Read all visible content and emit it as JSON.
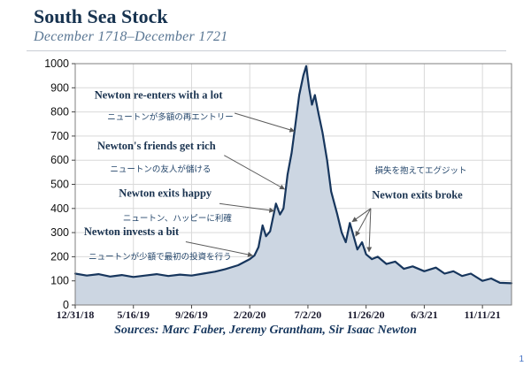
{
  "header": {
    "title": "South Sea Stock",
    "subtitle": "December 1718–December 1721"
  },
  "footer": {
    "sources": "Sources: Marc Faber, Jeremy Grantham, Sir Isaac Newton",
    "page_number": "1"
  },
  "chart_data": {
    "type": "line",
    "title": "South Sea Stock",
    "subtitle": "December 1718–December 1721",
    "x_tick_labels": [
      "12/31/18",
      "5/16/19",
      "9/26/19",
      "2/20/20",
      "7/2/20",
      "11/26/20",
      "6/3/21",
      "11/11/21"
    ],
    "x_ticks": [
      0,
      1,
      2,
      3,
      4,
      5,
      6,
      7
    ],
    "xlim": [
      0,
      7.5
    ],
    "y_ticks": [
      0,
      100,
      200,
      300,
      400,
      500,
      600,
      700,
      800,
      900,
      1000
    ],
    "ylim": [
      0,
      1000
    ],
    "grid": true,
    "area_fill": true,
    "legend": "none",
    "colors": {
      "line": "#17365d",
      "fill": "#ccd6e2",
      "grid": "#d9d9d9",
      "frame": "#7f7f7f",
      "annotation": "#1a3350",
      "title": "#16324f",
      "subtitle": "#5a7794"
    },
    "series": [
      {
        "name": "South Sea Stock price",
        "x": [
          0,
          0.2,
          0.4,
          0.6,
          0.8,
          1.0,
          1.2,
          1.4,
          1.6,
          1.8,
          2.0,
          2.2,
          2.4,
          2.6,
          2.8,
          3.0,
          3.08,
          3.15,
          3.22,
          3.28,
          3.35,
          3.45,
          3.52,
          3.58,
          3.65,
          3.72,
          3.78,
          3.85,
          3.92,
          3.97,
          4.02,
          4.07,
          4.12,
          4.18,
          4.25,
          4.33,
          4.4,
          4.5,
          4.58,
          4.65,
          4.72,
          4.78,
          4.85,
          4.93,
          5.0,
          5.1,
          5.2,
          5.35,
          5.5,
          5.65,
          5.8,
          6.0,
          6.2,
          6.35,
          6.5,
          6.65,
          6.8,
          7.0,
          7.15,
          7.3,
          7.5
        ],
        "y": [
          130,
          122,
          128,
          118,
          124,
          116,
          122,
          128,
          120,
          126,
          122,
          130,
          138,
          150,
          165,
          190,
          205,
          240,
          330,
          285,
          305,
          420,
          375,
          400,
          540,
          630,
          740,
          870,
          950,
          990,
          900,
          830,
          870,
          795,
          715,
          600,
          470,
          380,
          300,
          260,
          340,
          290,
          230,
          260,
          210,
          190,
          200,
          170,
          180,
          150,
          160,
          140,
          155,
          130,
          140,
          120,
          130,
          100,
          110,
          92,
          90
        ]
      }
    ],
    "annotations": [
      {
        "id": "re-enters",
        "text": "Newton re-enters with a lot",
        "text_jp": "ニュートンが多額の再エントリー",
        "label_xy": [
          0.33,
          855
        ],
        "jp_xy": [
          0.55,
          768
        ],
        "arrows": [
          {
            "from": [
              2.74,
              795
            ],
            "to": [
              3.77,
              720
            ]
          }
        ]
      },
      {
        "id": "friends-get-rich",
        "text": "Newton's friends get rich",
        "text_jp": "ニュートンの友人が儲ける",
        "label_xy": [
          0.38,
          645
        ],
        "jp_xy": [
          0.6,
          552
        ],
        "arrows": [
          {
            "from": [
              2.56,
              620
            ],
            "to": [
              3.6,
              480
            ]
          }
        ]
      },
      {
        "id": "exits-happy",
        "text": "Newton exits happy",
        "text_jp": "ニュートン、ハッピーに利確",
        "label_xy": [
          0.75,
          448
        ],
        "jp_xy": [
          0.82,
          348
        ],
        "arrows": [
          {
            "from": [
              2.48,
              420
            ],
            "to": [
              3.42,
              390
            ]
          }
        ]
      },
      {
        "id": "invests-a-bit",
        "text": "Newton invests a bit",
        "text_jp": "ニュートンが少額で最初の投資を行う",
        "label_xy": [
          0.15,
          290
        ],
        "jp_xy": [
          0.23,
          188
        ],
        "arrows": [
          {
            "from": [
              1.9,
              262
            ],
            "to": [
              3.05,
              205
            ]
          }
        ]
      },
      {
        "id": "exits-broke",
        "text": "Newton exits broke",
        "text_jp": "損失を抱えてエグジット",
        "label_xy": [
          5.1,
          442
        ],
        "jp_xy": [
          5.15,
          545
        ],
        "arrows": [
          {
            "from": [
              5.08,
              400
            ],
            "to": [
              4.76,
              345
            ]
          },
          {
            "from": [
              5.08,
              400
            ],
            "to": [
              4.82,
              285
            ]
          },
          {
            "from": [
              5.08,
              400
            ],
            "to": [
              5.05,
              220
            ]
          }
        ]
      }
    ]
  }
}
